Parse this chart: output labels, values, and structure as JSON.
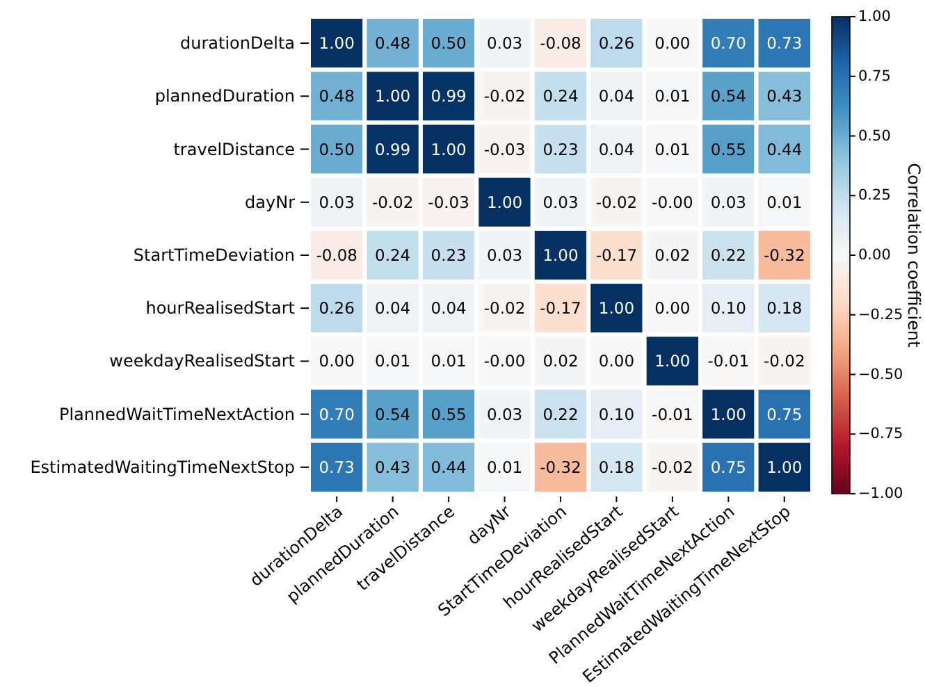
{
  "chart_data": {
    "type": "heatmap",
    "categories": [
      "durationDelta",
      "plannedDuration",
      "travelDistance",
      "dayNr",
      "StartTimeDeviation",
      "hourRealisedStart",
      "weekdayRealisedStart",
      "PlannedWaitTimeNextAction",
      "EstimatedWaitingTimeNextStop"
    ],
    "y_categories": [
      "durationDelta",
      "plannedDuration",
      "travelDistance",
      "dayNr",
      "StartTimeDeviation",
      "hourRealisedStart",
      "weekdayRealisedStart",
      "PlannedWaitTimeNextAction",
      "EstimatedWaitingTimeNextStop"
    ],
    "cells": [
      [
        1.0,
        0.48,
        0.5,
        0.03,
        -0.08,
        0.26,
        0.0,
        0.7,
        0.73
      ],
      [
        0.48,
        1.0,
        0.99,
        -0.02,
        0.24,
        0.04,
        0.01,
        0.54,
        0.43
      ],
      [
        0.5,
        0.99,
        1.0,
        -0.03,
        0.23,
        0.04,
        0.01,
        0.55,
        0.44
      ],
      [
        0.03,
        -0.02,
        -0.03,
        1.0,
        0.03,
        -0.02,
        0,
        0.03,
        0.01
      ],
      [
        -0.08,
        0.24,
        0.23,
        0.03,
        1.0,
        -0.17,
        0.02,
        0.22,
        -0.32
      ],
      [
        0.26,
        0.04,
        0.04,
        -0.02,
        -0.17,
        1.0,
        0.0,
        0.1,
        0.18
      ],
      [
        0.0,
        0.01,
        0.01,
        0,
        0.02,
        0.0,
        1.0,
        -0.01,
        -0.02
      ],
      [
        0.7,
        0.54,
        0.55,
        0.03,
        0.22,
        0.1,
        -0.01,
        1.0,
        0.75
      ],
      [
        0.73,
        0.43,
        0.44,
        0.01,
        -0.32,
        0.18,
        -0.02,
        0.75,
        1.0
      ]
    ],
    "cell_labels": [
      [
        "1.00",
        "0.48",
        "0.50",
        "0.03",
        "-0.08",
        "0.26",
        "0.00",
        "0.70",
        "0.73"
      ],
      [
        "0.48",
        "1.00",
        "0.99",
        "-0.02",
        "0.24",
        "0.04",
        "0.01",
        "0.54",
        "0.43"
      ],
      [
        "0.50",
        "0.99",
        "1.00",
        "-0.03",
        "0.23",
        "0.04",
        "0.01",
        "0.55",
        "0.44"
      ],
      [
        "0.03",
        "-0.02",
        "-0.03",
        "1.00",
        "0.03",
        "-0.02",
        "-0.00",
        "0.03",
        "0.01"
      ],
      [
        "-0.08",
        "0.24",
        "0.23",
        "0.03",
        "1.00",
        "-0.17",
        "0.02",
        "0.22",
        "-0.32"
      ],
      [
        "0.26",
        "0.04",
        "0.04",
        "-0.02",
        "-0.17",
        "1.00",
        "0.00",
        "0.10",
        "0.18"
      ],
      [
        "0.00",
        "0.01",
        "0.01",
        "-0.00",
        "0.02",
        "0.00",
        "1.00",
        "-0.01",
        "-0.02"
      ],
      [
        "0.70",
        "0.54",
        "0.55",
        "0.03",
        "0.22",
        "0.10",
        "-0.01",
        "1.00",
        "0.75"
      ],
      [
        "0.73",
        "0.43",
        "0.44",
        "0.01",
        "-0.32",
        "0.18",
        "-0.02",
        "0.75",
        "1.00"
      ]
    ],
    "clim": [
      -1,
      1
    ],
    "cticks": [
      {
        "value": -1,
        "label": "−1.00"
      },
      {
        "value": -0.75,
        "label": "−0.75"
      },
      {
        "value": -0.5,
        "label": "−0.50"
      },
      {
        "value": -0.25,
        "label": "−0.25"
      },
      {
        "value": 0,
        "label": "0.00"
      },
      {
        "value": 0.25,
        "label": "0.25"
      },
      {
        "value": 0.5,
        "label": "0.50"
      },
      {
        "value": 0.75,
        "label": "0.75"
      },
      {
        "value": 1,
        "label": "1.00"
      }
    ],
    "clabel": "Correlation coefficient"
  }
}
